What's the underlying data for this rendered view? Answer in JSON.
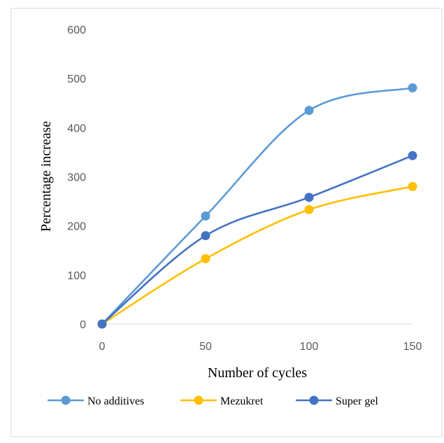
{
  "chart_data": {
    "type": "line",
    "title": "",
    "xlabel": "Number of cycles",
    "ylabel": "Percentage increase",
    "x": [
      0,
      50,
      100,
      150
    ],
    "xticks": [
      "0",
      "50",
      "100",
      "150"
    ],
    "yticks": [
      "0",
      "100",
      "200",
      "300",
      "400",
      "500",
      "600"
    ],
    "xlim": [
      0,
      150
    ],
    "ylim": [
      0,
      600
    ],
    "grid": false,
    "legend_position": "bottom",
    "smooth": true,
    "series": [
      {
        "name": "No additives",
        "values": [
          0,
          220,
          435,
          481
        ],
        "color": "#5b9bd5"
      },
      {
        "name": "Mezukret",
        "values": [
          0,
          133,
          233,
          280
        ],
        "color": "#ffc000"
      },
      {
        "name": "Super gel",
        "values": [
          0,
          180,
          258,
          343
        ],
        "color": "#4472c4"
      }
    ]
  }
}
